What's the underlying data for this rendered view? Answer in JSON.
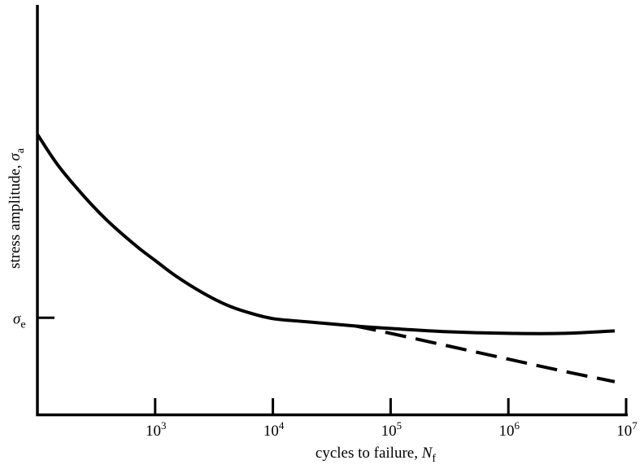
{
  "chart_data": {
    "type": "line",
    "xscale": "log",
    "xlim": [
      100,
      10000000
    ],
    "ylim": [
      0,
      1
    ],
    "xlabel": {
      "text": "cycles to failure, ",
      "symbol": "N",
      "subscript": "f"
    },
    "ylabel": {
      "text": "stress amplitude, ",
      "symbol": "σ",
      "subscript": "a"
    },
    "x_ticks": [
      {
        "base": "10",
        "exp": "3",
        "value": 1000
      },
      {
        "base": "10",
        "exp": "4",
        "value": 10000
      },
      {
        "base": "10",
        "exp": "5",
        "value": 100000
      },
      {
        "base": "10",
        "exp": "6",
        "value": 1000000
      },
      {
        "base": "10",
        "exp": "7",
        "value": 10000000
      }
    ],
    "y_ticks": [
      {
        "symbol": "σ",
        "subscript": "e",
        "value": 0.236
      }
    ],
    "series": [
      {
        "style": "solid",
        "x": [
          100,
          150,
          250,
          400,
          700,
          1000,
          1500,
          2500,
          4000,
          6000,
          10000,
          20000,
          50000,
          100000,
          300000,
          1000000,
          3000000,
          8000000
        ],
        "y": [
          0.684,
          0.608,
          0.532,
          0.471,
          0.41,
          0.376,
          0.338,
          0.298,
          0.268,
          0.25,
          0.234,
          0.226,
          0.216,
          0.21,
          0.202,
          0.198,
          0.198,
          0.204
        ]
      },
      {
        "style": "dashed",
        "x": [
          50000,
          100000,
          300000,
          1000000,
          3000000,
          8000000
        ],
        "y": [
          0.216,
          0.198,
          0.168,
          0.135,
          0.105,
          0.08
        ]
      }
    ],
    "grid": false,
    "legend": false
  }
}
